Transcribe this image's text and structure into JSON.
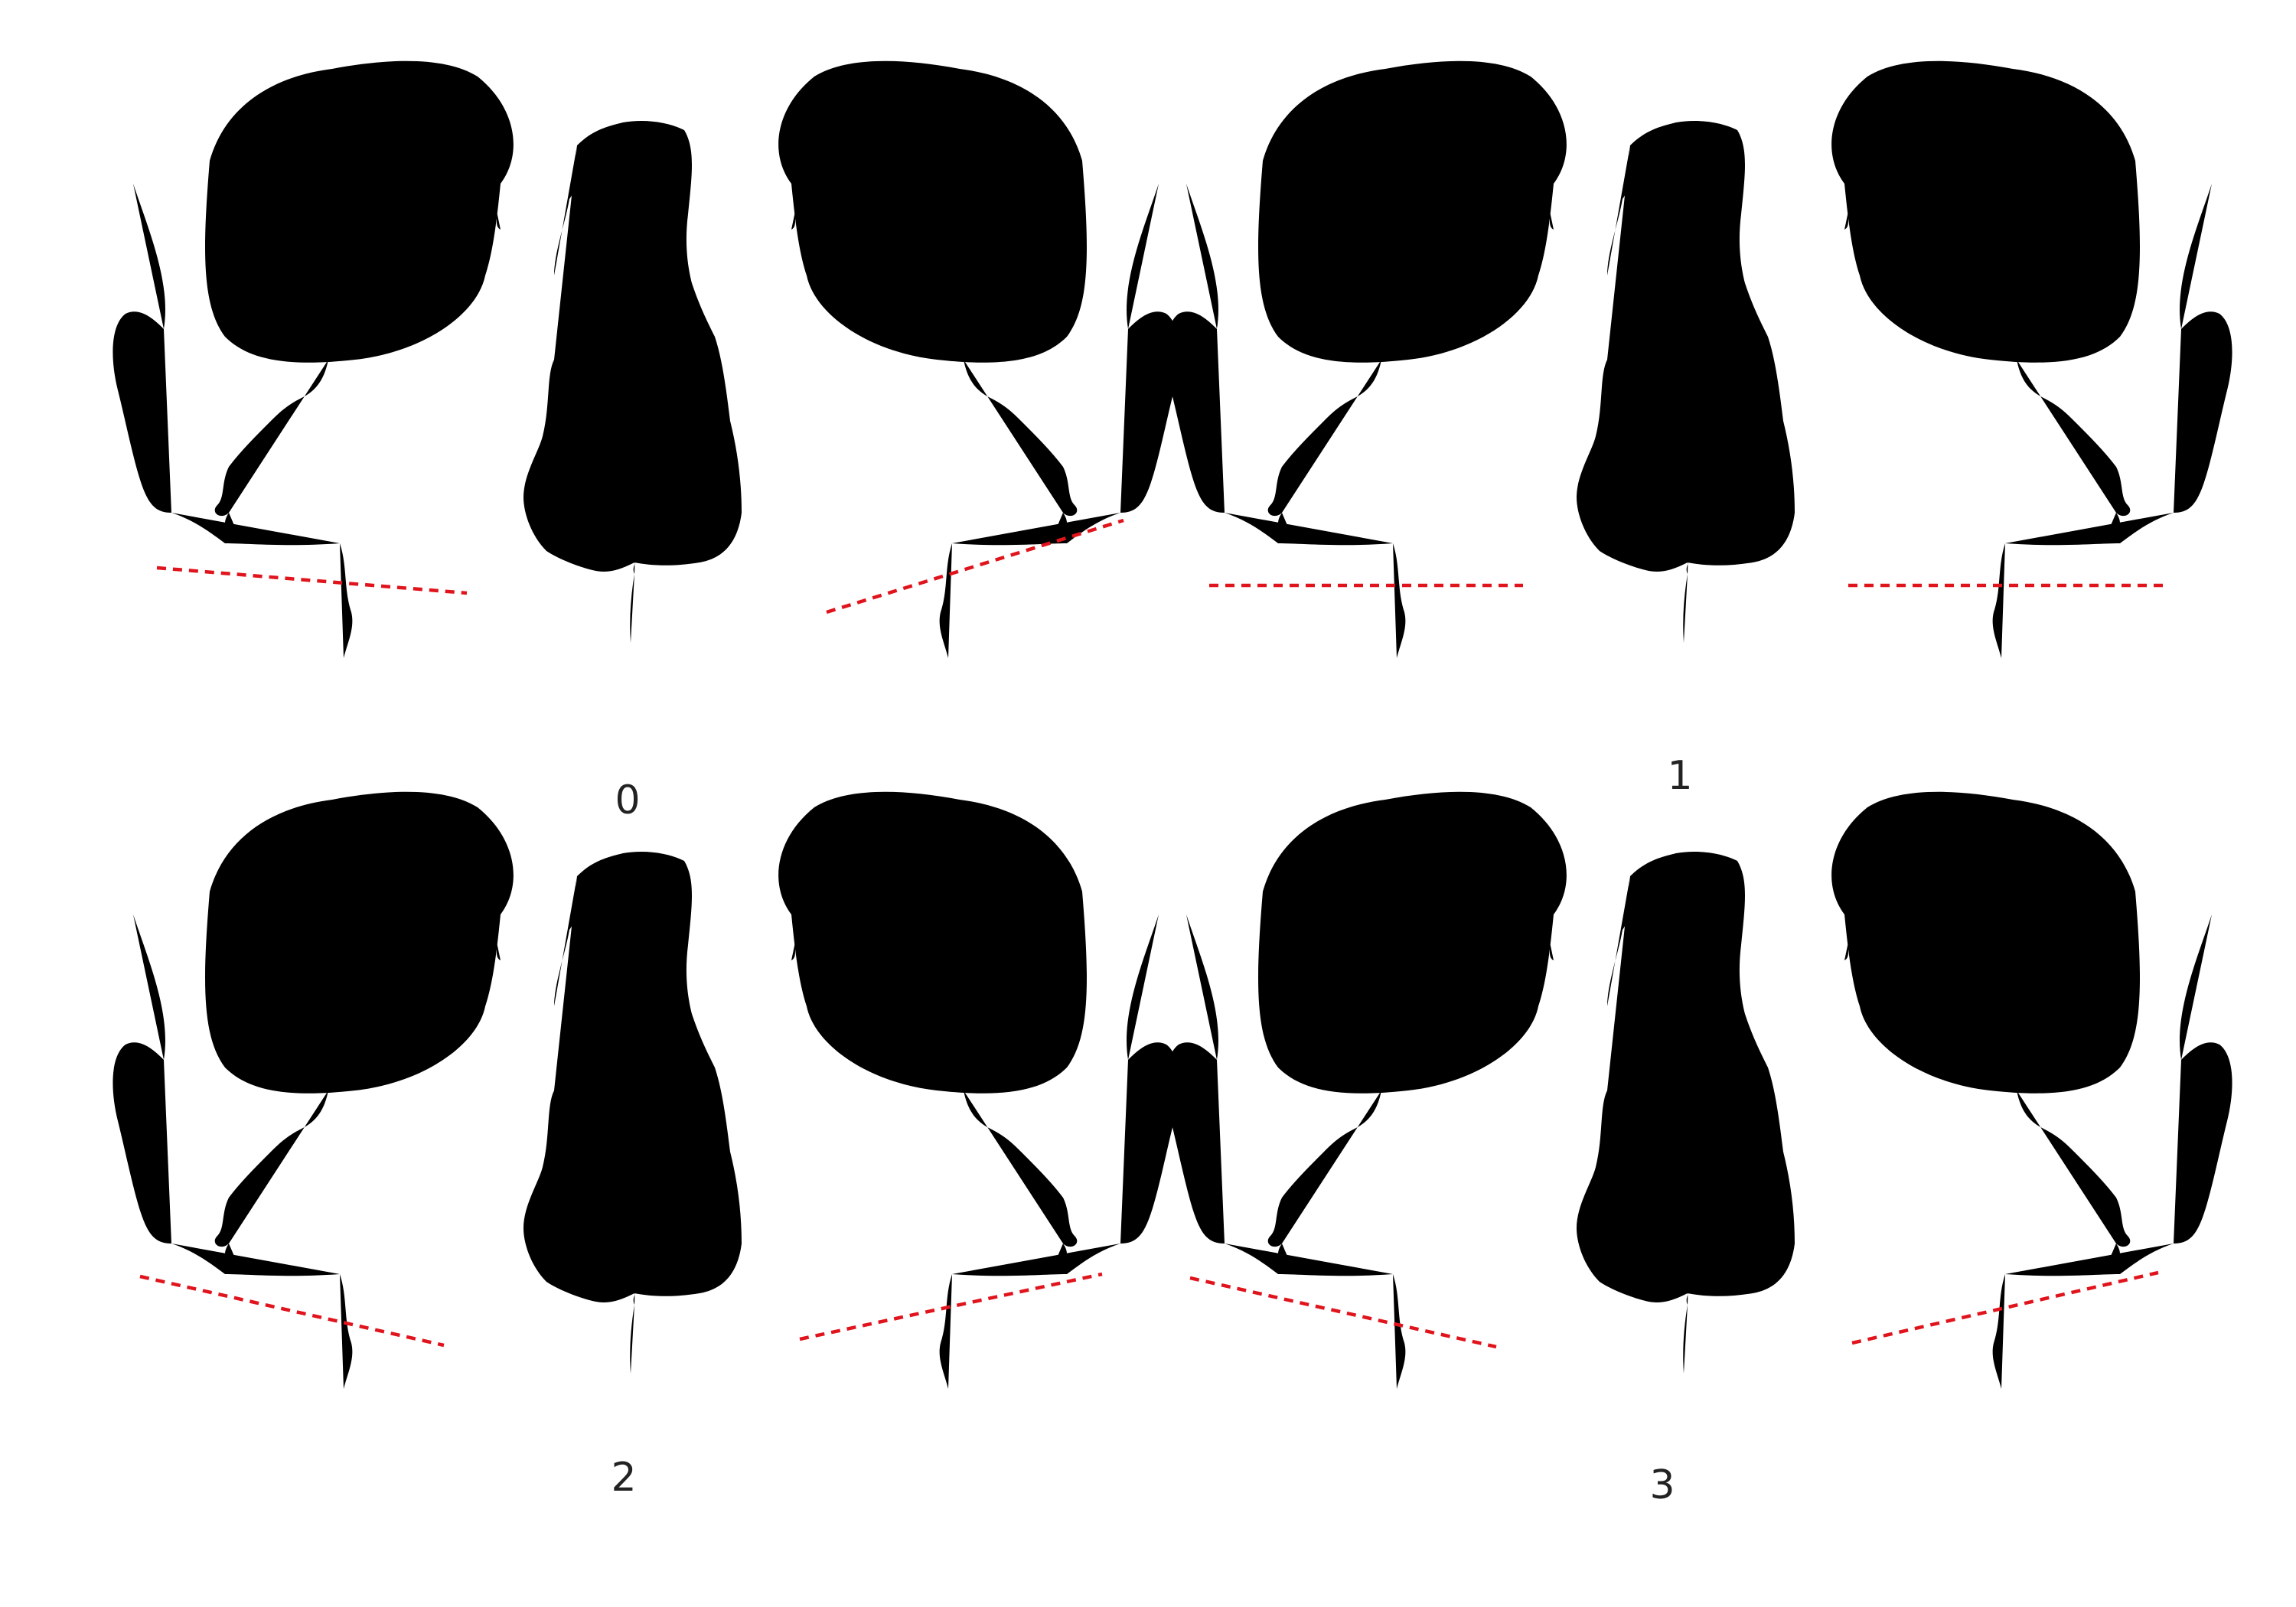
{
  "figure": {
    "panels": [
      {
        "label": "0"
      },
      {
        "label": "1"
      },
      {
        "label": "2"
      },
      {
        "label": "3"
      }
    ],
    "colors": {
      "outline": "#111111",
      "reference_line": "#e0141c",
      "background": "#ffffff"
    }
  }
}
